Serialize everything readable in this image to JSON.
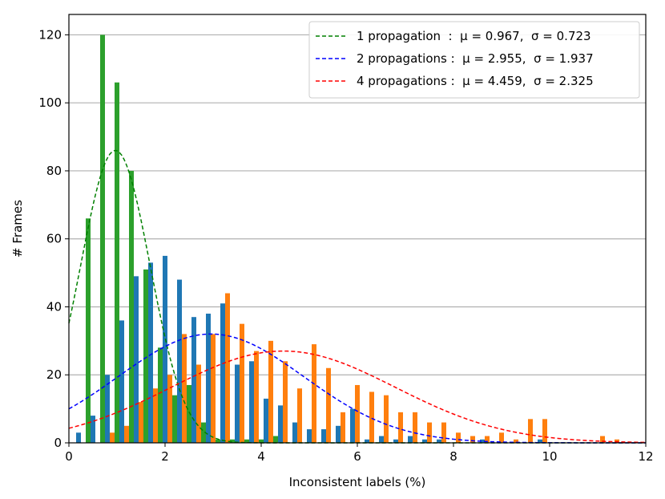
{
  "chart_data": {
    "type": "bar",
    "xlabel": "Inconsistent labels (%)",
    "ylabel": "# Frames",
    "xlim": [
      0,
      12
    ],
    "ylim": [
      0,
      126
    ],
    "xticks": [
      0,
      2,
      4,
      6,
      8,
      10,
      12
    ],
    "yticks": [
      0,
      20,
      40,
      60,
      80,
      100,
      120
    ],
    "grid": "horizontal",
    "legend_position": "top-right",
    "bin_centers": [
      0.3,
      0.6,
      0.9,
      1.2,
      1.5,
      1.8,
      2.1,
      2.4,
      2.7,
      3.0,
      3.3,
      3.6,
      3.9,
      4.2,
      4.5,
      4.8,
      5.1,
      5.4,
      5.7,
      6.0,
      6.3,
      6.6,
      6.9,
      7.2,
      7.5,
      7.8,
      8.1,
      8.4,
      8.7,
      9.0,
      9.3,
      9.6,
      9.9,
      10.2,
      10.5,
      10.8,
      11.1,
      11.4,
      11.7
    ],
    "histograms": [
      {
        "label": "1 propagation",
        "color": "#2ca02c",
        "offset": 0.1,
        "values": [
          66,
          120,
          106,
          80,
          51,
          28,
          14,
          17,
          6,
          1,
          1,
          1,
          1,
          2,
          0,
          0,
          0,
          0,
          0,
          0,
          0,
          0,
          0,
          0,
          0,
          0,
          0,
          0,
          0,
          0,
          0,
          0,
          0,
          0,
          0,
          0,
          0,
          0,
          0
        ]
      },
      {
        "label": "2 propagations",
        "color": "#1f77b4",
        "offset": -0.1,
        "values": [
          3,
          8,
          20,
          36,
          49,
          53,
          55,
          48,
          37,
          38,
          41,
          23,
          24,
          13,
          11,
          6,
          4,
          4,
          5,
          10,
          1,
          2,
          1,
          2,
          1,
          1,
          0,
          0,
          1,
          0,
          0,
          0,
          1,
          0,
          0,
          0,
          0,
          0,
          0
        ]
      },
      {
        "label": "4 propagations",
        "color": "#ff7f0e",
        "offset": 0.0,
        "values": [
          0,
          0,
          3,
          5,
          12,
          16,
          20,
          32,
          23,
          32,
          44,
          35,
          27,
          30,
          24,
          16,
          29,
          22,
          9,
          17,
          15,
          14,
          9,
          9,
          6,
          6,
          3,
          2,
          2,
          3,
          1,
          7,
          7,
          0,
          0,
          0,
          2,
          1,
          0
        ]
      }
    ],
    "series": [
      {
        "name": "1 propagation",
        "color": "#008000",
        "mu": 0.967,
        "sigma": 0.723,
        "peak": 86,
        "legend_text": "1 propagation  :  μ = 0.967,  σ = 0.723"
      },
      {
        "name": "2 propagations",
        "color": "#0000ff",
        "mu": 2.955,
        "sigma": 1.937,
        "peak": 32,
        "legend_text": "2 propagations :  μ = 2.955,  σ = 1.937"
      },
      {
        "name": "4 propagations",
        "color": "#ff0000",
        "mu": 4.459,
        "sigma": 2.325,
        "peak": 27,
        "legend_text": "4 propagations :  μ = 4.459,  σ = 2.325"
      }
    ]
  }
}
